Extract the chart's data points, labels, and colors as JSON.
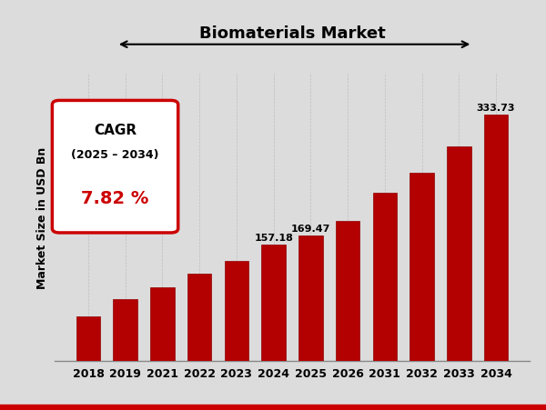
{
  "title": "Biomaterials Market",
  "ylabel": "Market Size in USD Bn",
  "categories": [
    "2018",
    "2019",
    "2021",
    "2022",
    "2023",
    "2024",
    "2025",
    "2026",
    "2031",
    "2032",
    "2033",
    "2034"
  ],
  "values": [
    60,
    83,
    100,
    118,
    135,
    157.18,
    169.47,
    190,
    228,
    255,
    290,
    333.73
  ],
  "bar_color": "#B30000",
  "bar_edge_color": "#900000",
  "background_color": "#DCDCDC",
  "label_values": [
    "157.18",
    "169.47",
    "333.73"
  ],
  "label_indices": [
    5,
    6,
    11
  ],
  "cagr_text_line1": "CAGR",
  "cagr_text_line2": "(2025 – 2034)",
  "cagr_text_line3": "7.82 %",
  "title_fontsize": 13,
  "ylabel_fontsize": 9,
  "tick_fontsize": 9,
  "ylim": [
    0,
    390
  ]
}
